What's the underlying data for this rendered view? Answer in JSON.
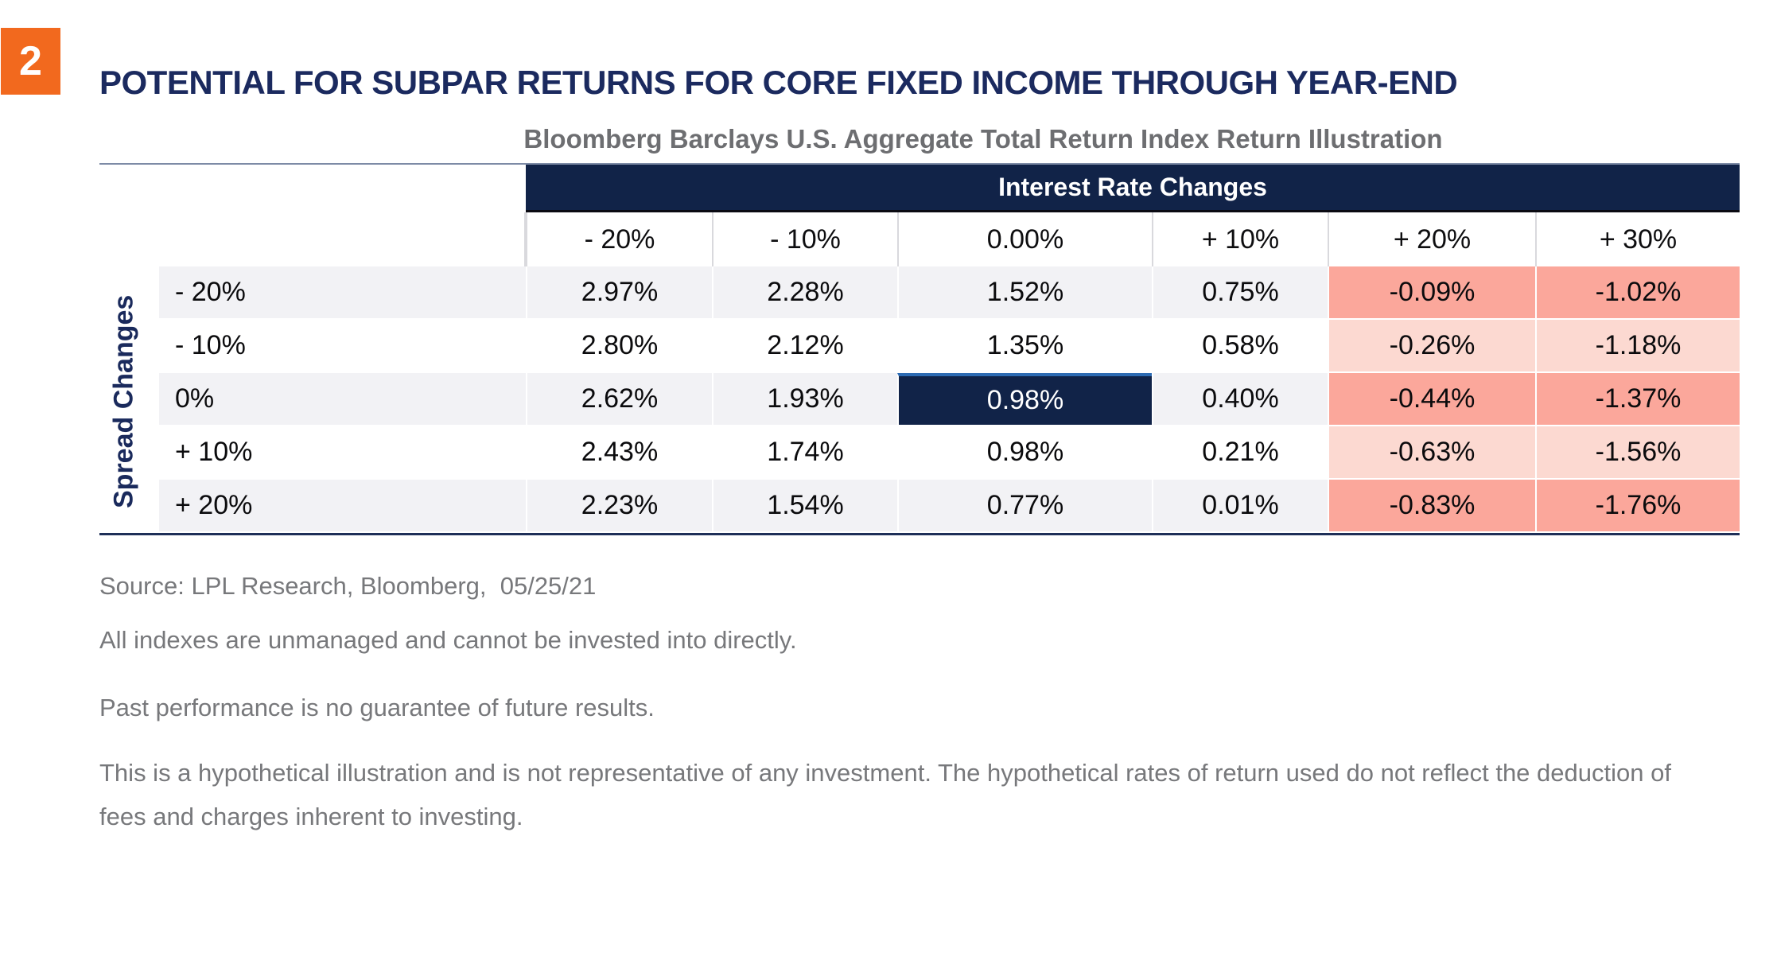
{
  "page": {
    "badge_number": "2",
    "title": "POTENTIAL FOR SUBPAR RETURNS FOR CORE FIXED INCOME THROUGH YEAR-END",
    "subtitle": "Bloomberg Barclays U.S. Aggregate Total Return Index Return Illustration"
  },
  "colors": {
    "accent_orange": "#F2691E",
    "title_navy": "#1B2A5F",
    "table_navy": "#112348",
    "highlight_top_border_blue": "#2D6BB3",
    "row_gray": "#F2F2F5",
    "negative_strong_pink": "#FBA79B",
    "negative_light_pink": "#FCD9D1",
    "subtitle_gray": "#6D6E71",
    "footer_gray": "#77787B"
  },
  "chart_data": {
    "type": "table",
    "title": "Bloomberg Barclays U.S. Aggregate Total Return Index Return Illustration",
    "column_group_label": "Interest Rate Changes",
    "row_group_label": "Spread Changes",
    "columns": [
      "- 20%",
      "- 10%",
      "0.00%",
      "+ 10%",
      "+ 20%",
      "+ 30%"
    ],
    "rows": [
      {
        "label": "- 20%",
        "values": [
          "2.97%",
          "2.28%",
          "1.52%",
          "0.75%",
          "-0.09%",
          "-1.02%"
        ]
      },
      {
        "label": "- 10%",
        "values": [
          "2.80%",
          "2.12%",
          "1.35%",
          "0.58%",
          "-0.26%",
          "-1.18%"
        ]
      },
      {
        "label": "0%",
        "values": [
          "2.62%",
          "1.93%",
          "0.98%",
          "0.40%",
          "-0.44%",
          "-1.37%"
        ]
      },
      {
        "label": "+ 10%",
        "values": [
          "2.43%",
          "1.74%",
          "0.98%",
          "0.21%",
          "-0.63%",
          "-1.56%"
        ]
      },
      {
        "label": "+ 20%",
        "values": [
          "2.23%",
          "1.54%",
          "0.77%",
          "0.01%",
          "-0.83%",
          "-1.76%"
        ]
      }
    ],
    "highlight_cell": {
      "row_index": 2,
      "col_index": 2,
      "value": "0.98%"
    }
  },
  "footer": {
    "source_line": "Source: LPL Research, Bloomberg,  05/25/21",
    "disclaimers": [
      "All indexes are unmanaged and cannot be invested into directly.",
      "Past performance is no guarantee of future results.",
      "This is a hypothetical illustration and is not representative of any investment. The hypothetical rates of return used do not reflect the deduction of fees and charges inherent to investing."
    ]
  }
}
